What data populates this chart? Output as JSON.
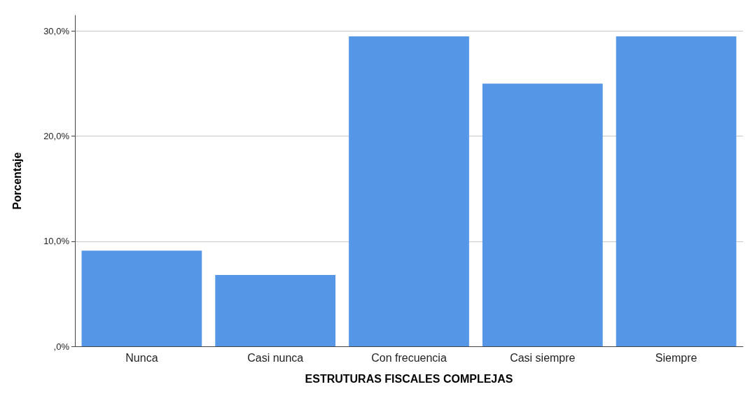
{
  "chart_data": {
    "type": "bar",
    "xlabel": "ESTRUTURAS FISCALES COMPLEJAS",
    "ylabel": "Porcentaje",
    "categories": [
      "Nunca",
      "Casi nunca",
      "Con frecuencia",
      "Casi siempre",
      "Siempre"
    ],
    "values": [
      9.1,
      6.8,
      29.5,
      25.0,
      29.5
    ],
    "color": "#5596e6",
    "ylim": [
      0,
      31.5
    ],
    "yticks": [
      {
        "value": 0,
        "label": ",0%"
      },
      {
        "value": 10,
        "label": "10,0%"
      },
      {
        "value": 20,
        "label": "20,0%"
      },
      {
        "value": 30,
        "label": "30,0%"
      }
    ],
    "grid": "y"
  }
}
